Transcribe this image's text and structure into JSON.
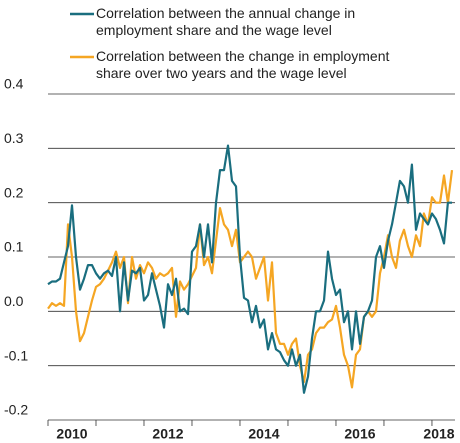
{
  "chart_data": {
    "type": "line",
    "x": [
      2010,
      2010.083,
      2010.167,
      2010.25,
      2010.333,
      2010.417,
      2010.5,
      2010.583,
      2010.667,
      2010.75,
      2010.833,
      2010.917,
      2011,
      2011.083,
      2011.167,
      2011.25,
      2011.333,
      2011.417,
      2011.5,
      2011.583,
      2011.667,
      2011.75,
      2011.833,
      2011.917,
      2012,
      2012.083,
      2012.167,
      2012.25,
      2012.333,
      2012.417,
      2012.5,
      2012.583,
      2012.667,
      2012.75,
      2012.833,
      2012.917,
      2013,
      2013.083,
      2013.167,
      2013.25,
      2013.333,
      2013.417,
      2013.5,
      2013.583,
      2013.667,
      2013.75,
      2013.833,
      2013.917,
      2014,
      2014.083,
      2014.167,
      2014.25,
      2014.333,
      2014.417,
      2014.5,
      2014.583,
      2014.667,
      2014.75,
      2014.833,
      2014.917,
      2015,
      2015.083,
      2015.167,
      2015.25,
      2015.333,
      2015.417,
      2015.5,
      2015.583,
      2015.667,
      2015.75,
      2015.833,
      2015.917,
      2016,
      2016.083,
      2016.167,
      2016.25,
      2016.333,
      2016.417,
      2016.5,
      2016.583,
      2016.667,
      2016.75,
      2016.833,
      2016.917,
      2017,
      2017.083,
      2017.167,
      2017.25,
      2017.333,
      2017.417,
      2017.5,
      2017.583,
      2017.667,
      2017.75,
      2017.833,
      2017.917,
      2018,
      2018.083,
      2018.167,
      2018.25,
      2018.333,
      2018.417
    ],
    "series": [
      {
        "name": "Correlation between the annual change in employment share and the wage level",
        "color": "#1a6e7f",
        "values": [
          0.05,
          0.055,
          0.055,
          0.06,
          0.09,
          0.12,
          0.195,
          0.1,
          0.04,
          0.06,
          0.085,
          0.085,
          0.07,
          0.06,
          0.07,
          0.075,
          0.065,
          0.1,
          0.0,
          0.09,
          0.02,
          0.075,
          0.07,
          0.08,
          0.02,
          0.03,
          0.07,
          0.04,
          0.01,
          -0.03,
          0.05,
          0.03,
          0.06,
          0.0,
          0.005,
          -0.005,
          0.11,
          0.12,
          0.16,
          0.1,
          0.16,
          0.09,
          0.2,
          0.26,
          0.26,
          0.305,
          0.24,
          0.23,
          0.1,
          0.025,
          0.02,
          -0.02,
          0.01,
          -0.03,
          -0.015,
          -0.07,
          -0.04,
          -0.07,
          -0.075,
          -0.09,
          -0.1,
          -0.07,
          -0.1,
          -0.08,
          -0.15,
          -0.12,
          -0.05,
          0.0,
          0.0,
          0.02,
          0.11,
          0.06,
          0.03,
          0.04,
          -0.02,
          0.0,
          -0.07,
          0.0,
          -0.06,
          -0.01,
          0.0,
          0.02,
          0.1,
          0.12,
          0.08,
          0.13,
          0.16,
          0.2,
          0.24,
          0.23,
          0.2,
          0.27,
          0.15,
          0.18,
          0.17,
          0.16,
          0.18,
          0.17,
          0.15,
          0.125,
          0.2,
          0.2
        ]
      },
      {
        "name": "Correlation between the change in employment share over two years and the wage level",
        "color": "#f5a623",
        "values": [
          0.005,
          0.015,
          0.01,
          0.015,
          0.01,
          0.16,
          0.1,
          0.0,
          -0.055,
          -0.04,
          -0.01,
          0.02,
          0.045,
          0.05,
          0.06,
          0.075,
          0.09,
          0.11,
          0.08,
          0.1,
          0.015,
          0.1,
          0.06,
          0.085,
          0.07,
          0.09,
          0.08,
          0.06,
          0.07,
          0.065,
          0.07,
          0.08,
          -0.01,
          0.055,
          0.04,
          0.05,
          0.065,
          0.08,
          0.16,
          0.085,
          0.1,
          0.07,
          0.13,
          0.19,
          0.16,
          0.15,
          0.12,
          0.15,
          0.09,
          0.1,
          0.11,
          0.1,
          0.06,
          0.08,
          0.1,
          0.02,
          0.09,
          -0.04,
          -0.06,
          -0.06,
          -0.08,
          -0.06,
          -0.05,
          -0.1,
          -0.13,
          -0.08,
          -0.07,
          -0.04,
          -0.03,
          -0.03,
          -0.02,
          -0.015,
          0.01,
          -0.03,
          -0.08,
          -0.1,
          -0.14,
          -0.08,
          -0.07,
          -0.01,
          0.0,
          -0.01,
          0.0,
          0.07,
          0.1,
          0.14,
          0.1,
          0.08,
          0.13,
          0.15,
          0.12,
          0.1,
          0.14,
          0.12,
          0.18,
          0.16,
          0.21,
          0.2,
          0.2,
          0.25,
          0.2,
          0.26
        ]
      }
    ],
    "xlim": [
      2010,
      2018.48
    ],
    "xticks": [
      {
        "value": 2010.5,
        "label": "2010"
      },
      {
        "value": 2012.5,
        "label": "2012"
      },
      {
        "value": 2014.5,
        "label": "2014"
      },
      {
        "value": 2016.5,
        "label": "2016"
      },
      {
        "value": 2018.5,
        "label": "2018"
      }
    ],
    "ylim": [
      -0.2,
      0.4
    ],
    "yticks": [
      0.4,
      0.3,
      0.2,
      0.1,
      {
        "value": 0,
        "label": "0.0"
      },
      -0.1,
      -0.2
    ],
    "grid": true
  }
}
